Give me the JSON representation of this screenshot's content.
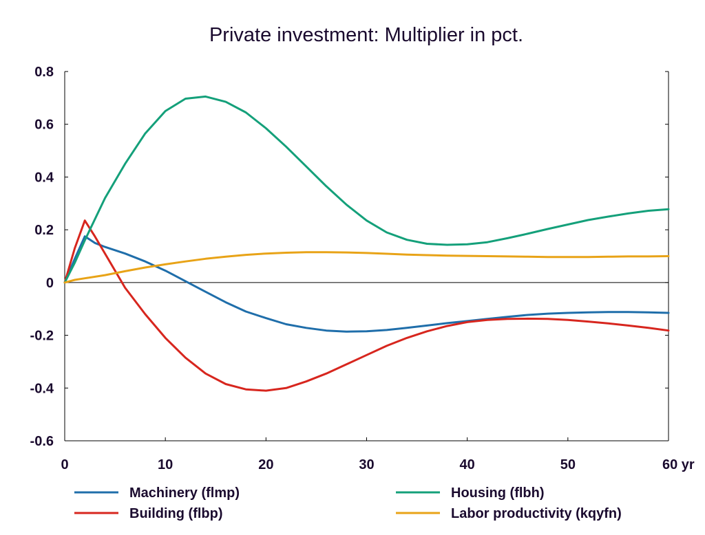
{
  "chart_data": {
    "type": "line",
    "title": "Private investment: Multiplier in pct.",
    "xlabel": "",
    "ylabel": "",
    "x_unit_label": "yr",
    "xlim": [
      0,
      60
    ],
    "ylim": [
      -0.6,
      0.8
    ],
    "x_ticks": [
      0,
      10,
      20,
      30,
      40,
      50,
      60
    ],
    "x_tick_labels": [
      "0",
      "10",
      "20",
      "30",
      "40",
      "50",
      "60 yr"
    ],
    "y_ticks": [
      -0.6,
      -0.4,
      -0.2,
      0,
      0.2,
      0.4,
      0.6,
      0.8
    ],
    "y_tick_labels": [
      "-0.6",
      "-0.4",
      "-0.2",
      "0",
      "0.2",
      "0.4",
      "0.6",
      "0.8"
    ],
    "grid": false,
    "zero_line": true,
    "legend_position": "bottom",
    "series": [
      {
        "name": "Machinery (flmp)",
        "color": "#1f6eaa",
        "x": [
          0,
          1,
          2,
          3,
          4,
          6,
          8,
          10,
          12,
          14,
          16,
          18,
          20,
          22,
          24,
          26,
          28,
          30,
          32,
          34,
          36,
          38,
          40,
          42,
          44,
          46,
          48,
          50,
          52,
          54,
          56,
          58,
          60
        ],
        "y": [
          0,
          0.09,
          0.175,
          0.15,
          0.135,
          0.11,
          0.08,
          0.045,
          0.005,
          -0.035,
          -0.075,
          -0.11,
          -0.135,
          -0.158,
          -0.172,
          -0.182,
          -0.186,
          -0.185,
          -0.18,
          -0.172,
          -0.163,
          -0.154,
          -0.146,
          -0.138,
          -0.13,
          -0.123,
          -0.118,
          -0.115,
          -0.113,
          -0.112,
          -0.112,
          -0.113,
          -0.115
        ]
      },
      {
        "name": "Building (flbp)",
        "color": "#d7261e",
        "x": [
          0,
          1,
          2,
          3,
          4,
          5,
          6,
          8,
          10,
          12,
          14,
          16,
          18,
          20,
          22,
          24,
          26,
          28,
          30,
          32,
          34,
          36,
          38,
          40,
          42,
          44,
          46,
          48,
          50,
          52,
          54,
          56,
          58,
          60
        ],
        "y": [
          0,
          0.13,
          0.235,
          0.175,
          0.11,
          0.045,
          -0.02,
          -0.12,
          -0.21,
          -0.285,
          -0.345,
          -0.385,
          -0.405,
          -0.41,
          -0.4,
          -0.375,
          -0.345,
          -0.31,
          -0.275,
          -0.24,
          -0.21,
          -0.185,
          -0.165,
          -0.15,
          -0.142,
          -0.138,
          -0.137,
          -0.138,
          -0.142,
          -0.148,
          -0.155,
          -0.163,
          -0.172,
          -0.182
        ]
      },
      {
        "name": "Housing (flbh)",
        "color": "#14a07a",
        "x": [
          0,
          1,
          2,
          4,
          6,
          8,
          10,
          12,
          14,
          16,
          18,
          20,
          22,
          24,
          26,
          28,
          30,
          32,
          34,
          36,
          38,
          40,
          42,
          44,
          46,
          48,
          50,
          52,
          54,
          56,
          58,
          60
        ],
        "y": [
          0,
          0.075,
          0.16,
          0.32,
          0.45,
          0.565,
          0.65,
          0.697,
          0.705,
          0.685,
          0.645,
          0.585,
          0.515,
          0.44,
          0.365,
          0.295,
          0.235,
          0.19,
          0.162,
          0.147,
          0.143,
          0.145,
          0.153,
          0.168,
          0.185,
          0.203,
          0.22,
          0.237,
          0.25,
          0.262,
          0.272,
          0.278
        ]
      },
      {
        "name": "Labor productivity (kqyfn)",
        "color": "#e8a317",
        "x": [
          0,
          1,
          2,
          4,
          6,
          8,
          10,
          12,
          14,
          16,
          18,
          20,
          22,
          24,
          26,
          28,
          30,
          32,
          34,
          36,
          38,
          40,
          42,
          44,
          46,
          48,
          50,
          52,
          54,
          56,
          58,
          60
        ],
        "y": [
          0,
          0.01,
          0.016,
          0.028,
          0.043,
          0.057,
          0.069,
          0.08,
          0.09,
          0.098,
          0.105,
          0.11,
          0.113,
          0.115,
          0.115,
          0.114,
          0.112,
          0.109,
          0.106,
          0.104,
          0.102,
          0.101,
          0.1,
          0.099,
          0.098,
          0.097,
          0.097,
          0.097,
          0.098,
          0.099,
          0.099,
          0.1
        ]
      }
    ],
    "legend_order": [
      0,
      2,
      1,
      3
    ]
  }
}
